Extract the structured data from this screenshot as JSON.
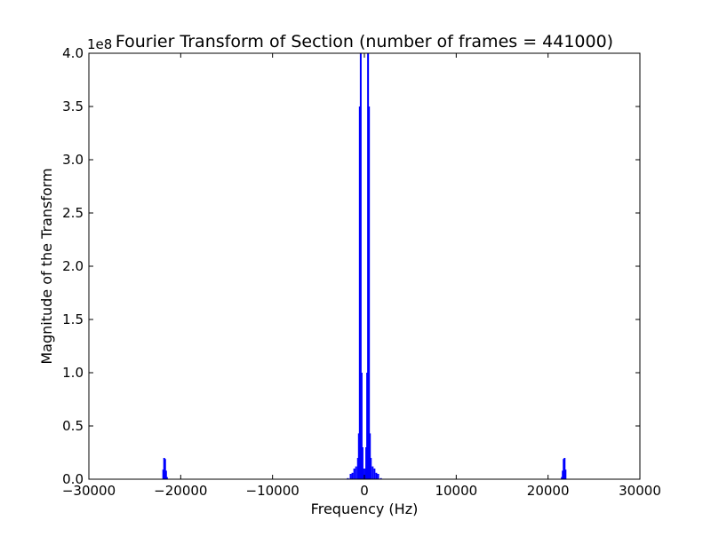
{
  "chart_data": {
    "type": "bar",
    "title": "Fourier Transform of Section  (number of frames = 441000)",
    "xlabel": "Frequency (Hz)",
    "ylabel": "Magnitude of the Transform",
    "y_multiplier_label": "1e8",
    "xlim": [
      -30000,
      30000
    ],
    "ylim": [
      0,
      4.0
    ],
    "xticks": [
      -30000,
      -20000,
      -10000,
      0,
      10000,
      20000,
      30000
    ],
    "xtick_labels": [
      "−30000",
      "−20000",
      "−10000",
      "0",
      "10000",
      "20000",
      "30000"
    ],
    "yticks": [
      0.0,
      0.5,
      1.0,
      1.5,
      2.0,
      2.5,
      3.0,
      3.5,
      4.0
    ],
    "ytick_labels": [
      "0.0",
      "0.5",
      "1.0",
      "1.5",
      "2.0",
      "2.5",
      "3.0",
      "3.5",
      "4.0"
    ],
    "grid": false,
    "bar_color": "#0000ff",
    "series": [
      {
        "x": [
          -21900,
          -21800,
          -21700,
          -21600,
          -21500,
          -1800,
          -1500,
          -1300,
          -1100,
          -900,
          -700,
          -600,
          -500,
          -400,
          -300,
          -200,
          -100,
          0,
          100,
          200,
          300,
          400,
          500,
          600,
          700,
          900,
          1100,
          1300,
          1500,
          1800,
          21500,
          21600,
          21700,
          21800,
          21900
        ],
        "values": [
          0.09,
          0.2,
          0.19,
          0.08,
          0.02,
          0.01,
          0.05,
          0.06,
          0.1,
          0.12,
          0.2,
          0.43,
          3.5,
          4.0,
          1.0,
          0.3,
          0.1,
          0.02,
          0.1,
          0.3,
          1.0,
          4.0,
          3.5,
          0.43,
          0.2,
          0.12,
          0.1,
          0.06,
          0.05,
          0.01,
          0.02,
          0.08,
          0.19,
          0.2,
          0.09
        ]
      }
    ]
  }
}
